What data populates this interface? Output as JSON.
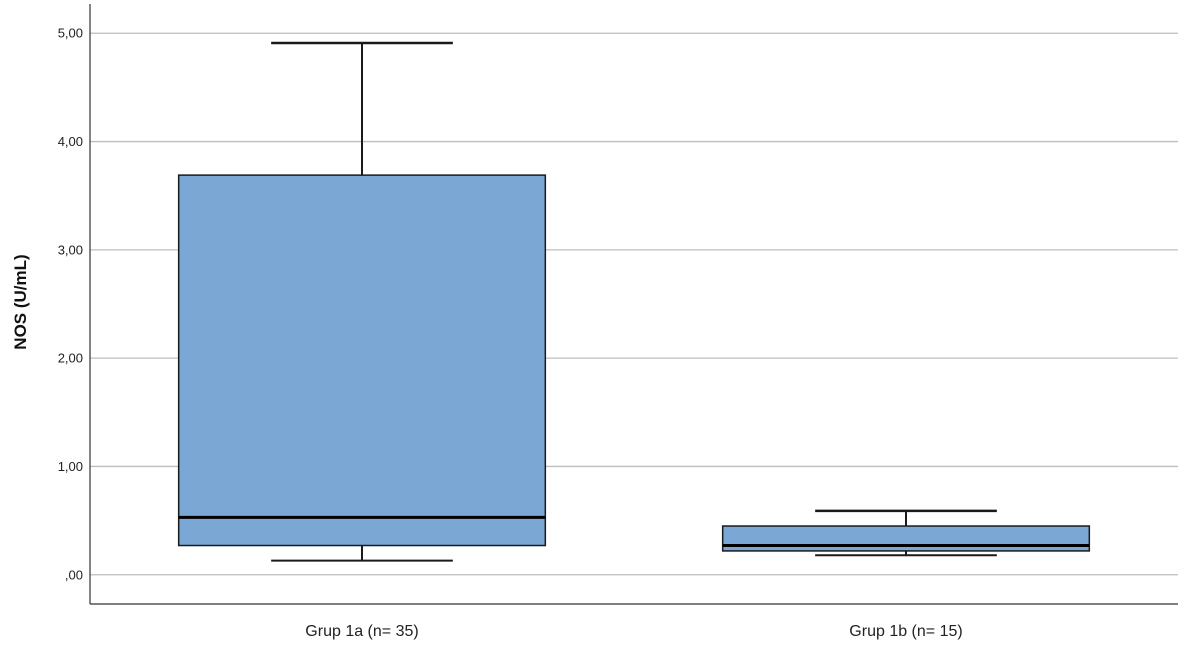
{
  "chart_data": {
    "type": "boxplot",
    "ylabel": "NOS (U/mL)",
    "xlabel": "",
    "ylim": [
      -0.27,
      5.27
    ],
    "yticks": [
      {
        "value": 0,
        "label": ",00"
      },
      {
        "value": 1,
        "label": "1,00"
      },
      {
        "value": 2,
        "label": "2,00"
      },
      {
        "value": 3,
        "label": "3,00"
      },
      {
        "value": 4,
        "label": "4,00"
      },
      {
        "value": 5,
        "label": "5,00"
      }
    ],
    "grid": true,
    "categories": [
      "Grup 1a (n= 35)",
      "Grup 1b (n= 15)"
    ],
    "boxes": [
      {
        "category": "Grup 1a (n= 35)",
        "min": 0.13,
        "q1": 0.27,
        "median": 0.53,
        "q3": 3.69,
        "max": 4.91
      },
      {
        "category": "Grup 1b (n= 15)",
        "min": 0.18,
        "q1": 0.22,
        "median": 0.27,
        "q3": 0.45,
        "max": 0.59
      }
    ],
    "colors": {
      "box_fill": "#7ba7d4",
      "box_stroke": "#1a1a1a",
      "gridline": "#bdbdbd",
      "axis": "#333333"
    }
  }
}
